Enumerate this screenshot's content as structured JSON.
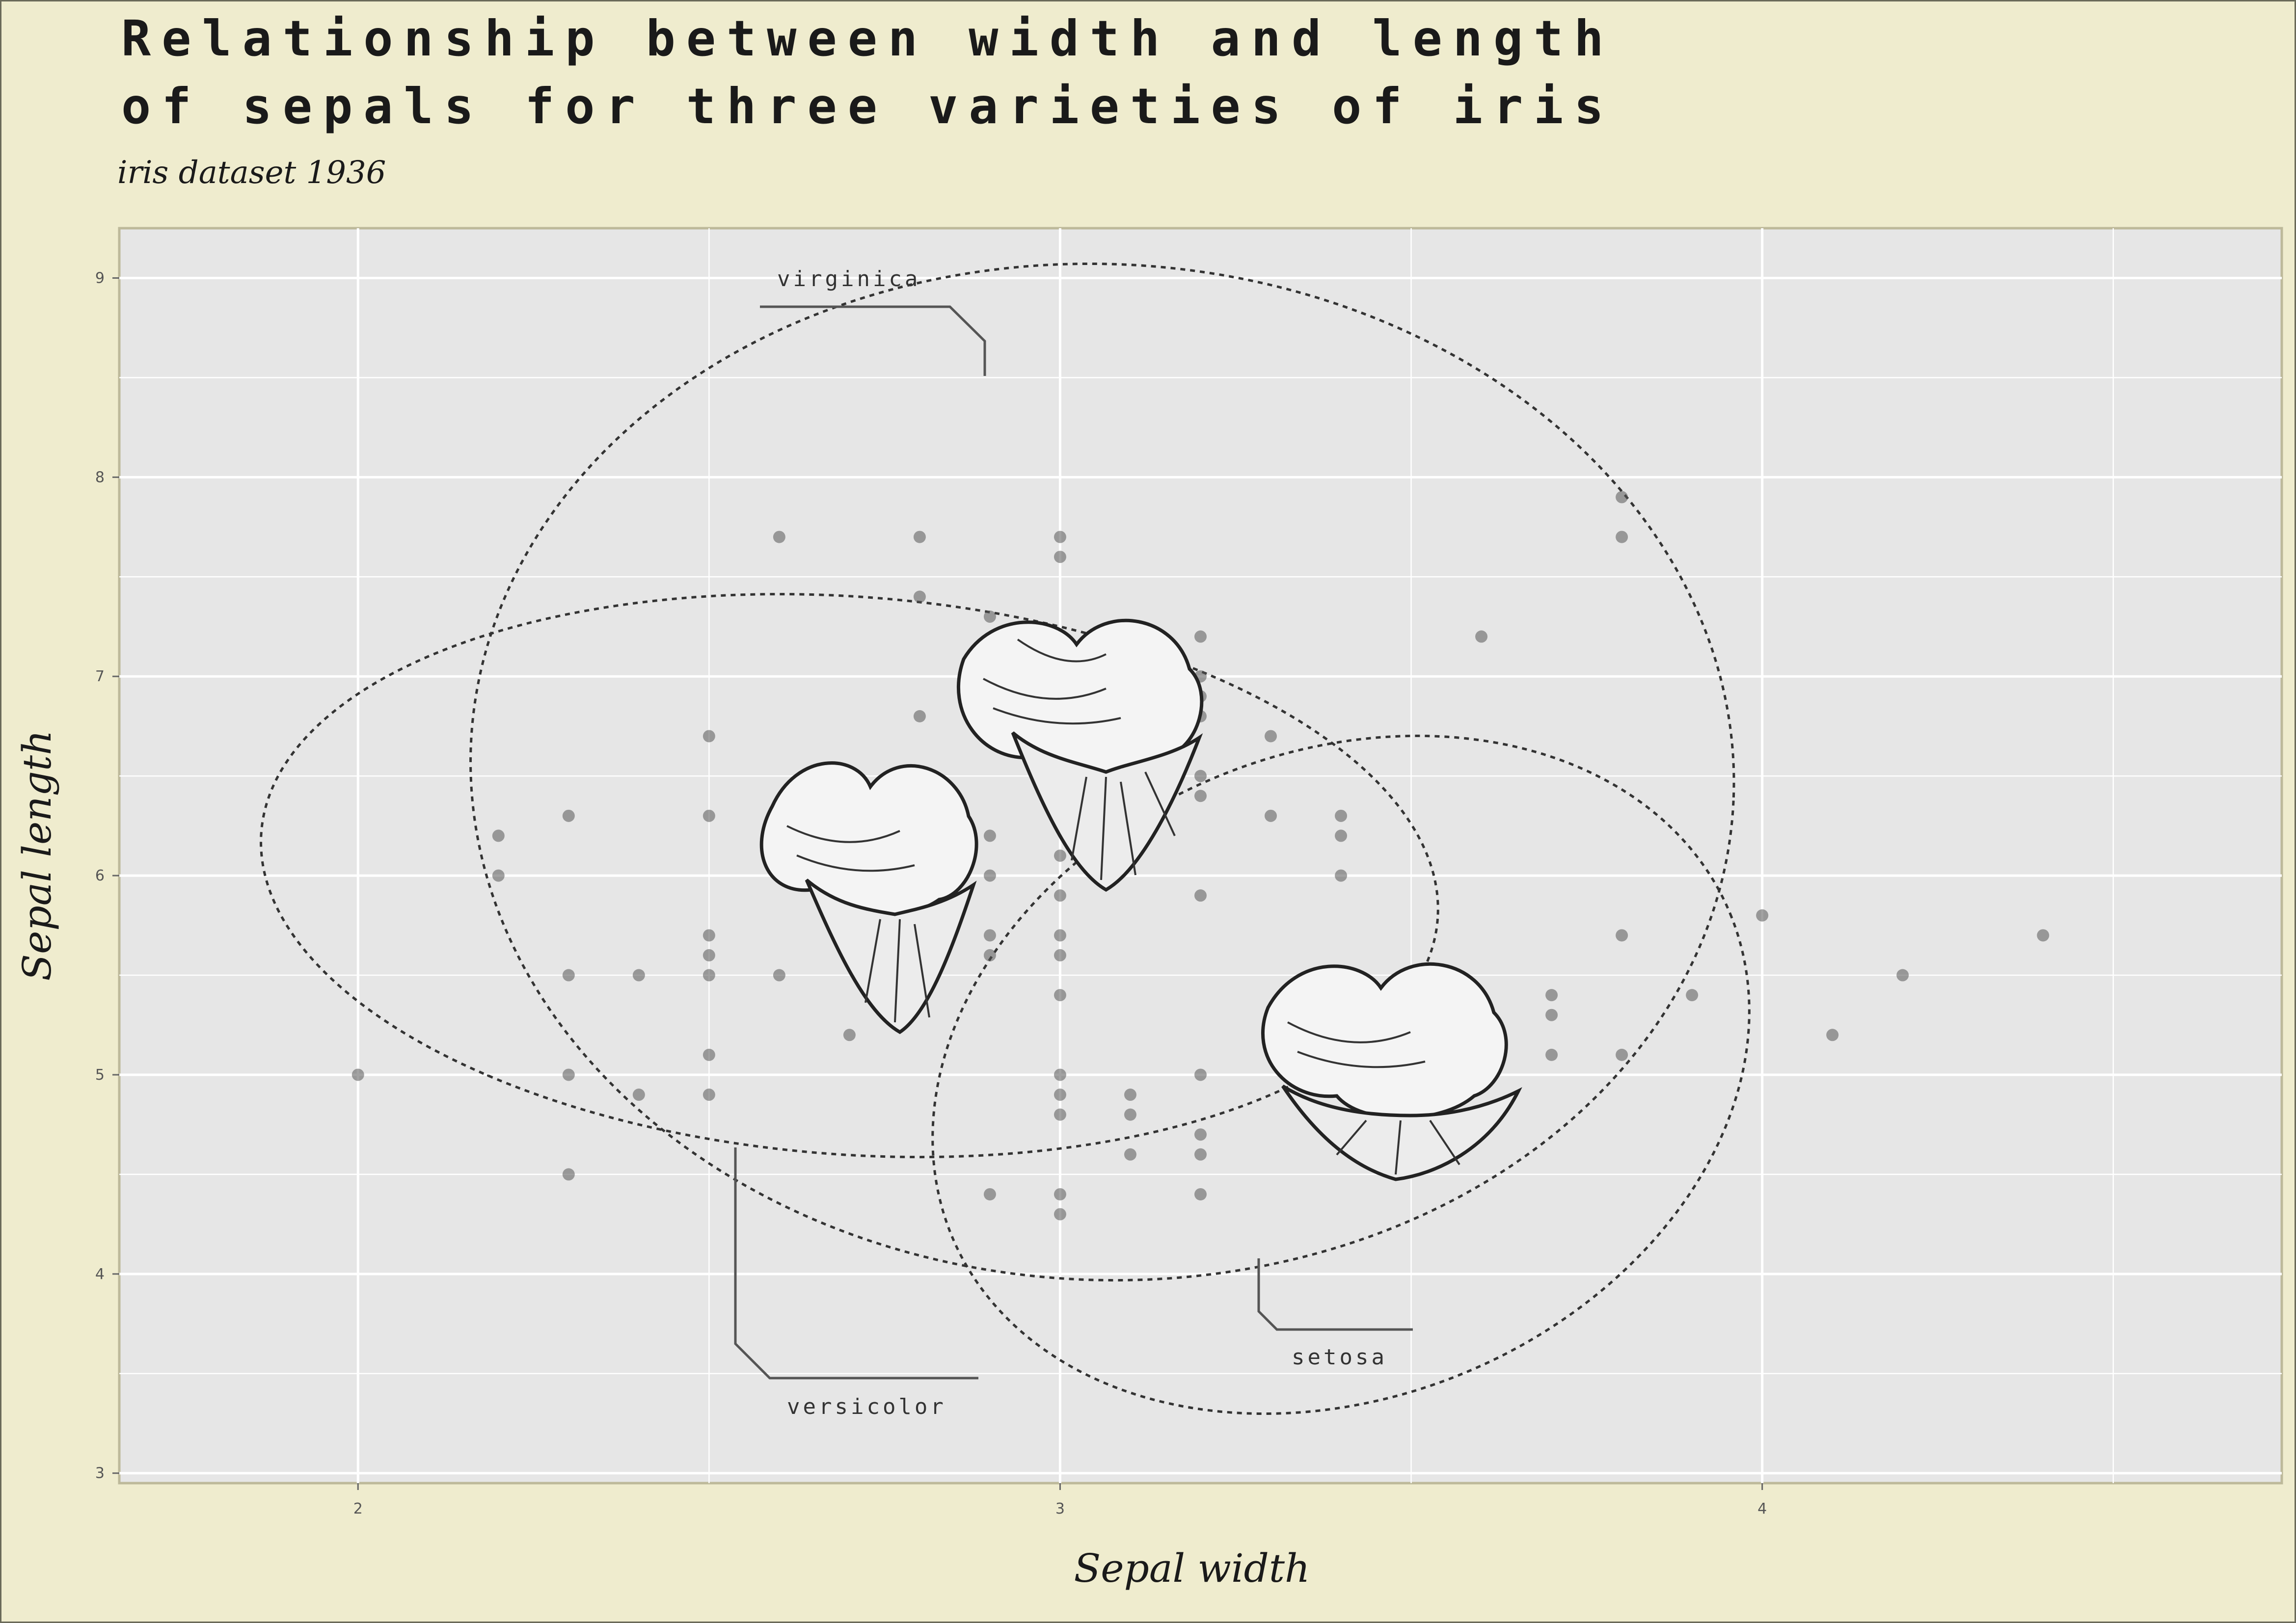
{
  "chart_data": {
    "type": "scatter",
    "title_lines": [
      "Relationship between width and length",
      "of sepals for three varieties of iris"
    ],
    "subtitle": "iris dataset 1936",
    "xlabel": "Sepal width",
    "ylabel": "Sepal length",
    "xlim": [
      1.66,
      4.74
    ],
    "ylim": [
      2.95,
      9.25
    ],
    "x_ticks": [
      2,
      3,
      4
    ],
    "y_ticks": [
      3,
      4,
      5,
      6,
      7,
      8,
      9
    ],
    "grid": true,
    "annotations": [
      {
        "label": "virginica"
      },
      {
        "label": "versicolor"
      },
      {
        "label": "setosa"
      }
    ],
    "point_color": "#555555",
    "background": "#e6e6e6",
    "page_background": "#efecce",
    "points": [
      [
        2.0,
        5.0
      ],
      [
        2.2,
        6.2
      ],
      [
        2.2,
        6.0
      ],
      [
        2.3,
        6.3
      ],
      [
        2.3,
        5.5
      ],
      [
        2.3,
        5.0
      ],
      [
        2.3,
        4.5
      ],
      [
        2.4,
        5.5
      ],
      [
        2.4,
        4.9
      ],
      [
        2.5,
        6.7
      ],
      [
        2.5,
        6.3
      ],
      [
        2.5,
        5.7
      ],
      [
        2.5,
        5.6
      ],
      [
        2.5,
        5.5
      ],
      [
        2.5,
        5.1
      ],
      [
        2.5,
        4.9
      ],
      [
        2.6,
        7.7
      ],
      [
        2.6,
        6.1
      ],
      [
        2.6,
        5.5
      ],
      [
        2.7,
        5.2
      ],
      [
        2.8,
        7.7
      ],
      [
        2.8,
        7.4
      ],
      [
        2.8,
        6.8
      ],
      [
        2.8,
        6.1
      ],
      [
        2.8,
        5.7
      ],
      [
        2.9,
        7.3
      ],
      [
        2.9,
        6.2
      ],
      [
        2.9,
        6.0
      ],
      [
        2.9,
        5.7
      ],
      [
        2.9,
        5.6
      ],
      [
        2.9,
        4.4
      ],
      [
        3.0,
        7.7
      ],
      [
        3.0,
        7.6
      ],
      [
        3.0,
        6.1
      ],
      [
        3.0,
        5.9
      ],
      [
        3.0,
        5.7
      ],
      [
        3.0,
        5.6
      ],
      [
        3.0,
        5.4
      ],
      [
        3.0,
        5.0
      ],
      [
        3.0,
        4.9
      ],
      [
        3.0,
        4.8
      ],
      [
        3.0,
        4.4
      ],
      [
        3.0,
        4.3
      ],
      [
        3.1,
        4.9
      ],
      [
        3.1,
        4.8
      ],
      [
        3.1,
        4.6
      ],
      [
        3.2,
        7.2
      ],
      [
        3.2,
        7.0
      ],
      [
        3.2,
        6.9
      ],
      [
        3.2,
        6.8
      ],
      [
        3.2,
        6.5
      ],
      [
        3.2,
        6.4
      ],
      [
        3.2,
        5.9
      ],
      [
        3.2,
        5.0
      ],
      [
        3.2,
        4.7
      ],
      [
        3.2,
        4.6
      ],
      [
        3.2,
        4.4
      ],
      [
        3.3,
        6.7
      ],
      [
        3.3,
        6.3
      ],
      [
        3.4,
        6.3
      ],
      [
        3.4,
        6.2
      ],
      [
        3.4,
        6.0
      ],
      [
        3.5,
        5.0
      ],
      [
        3.6,
        7.2
      ],
      [
        3.6,
        5.0
      ],
      [
        3.7,
        5.4
      ],
      [
        3.7,
        5.3
      ],
      [
        3.7,
        5.1
      ],
      [
        3.8,
        7.9
      ],
      [
        3.8,
        7.7
      ],
      [
        3.8,
        5.7
      ],
      [
        3.8,
        5.1
      ],
      [
        3.9,
        5.4
      ],
      [
        4.0,
        5.8
      ],
      [
        4.1,
        5.2
      ],
      [
        4.2,
        5.5
      ],
      [
        4.4,
        5.7
      ]
    ],
    "ellipses": [
      {
        "species": "virginica",
        "cx": 3.06,
        "cy": 6.52,
        "rx": 0.9,
        "ry": 2.55,
        "angle_deg": 2.6
      },
      {
        "species": "versicolor",
        "cx": 2.7,
        "cy": 6.0,
        "rx": 0.84,
        "ry": 1.4,
        "angle_deg": 4.2
      },
      {
        "species": "setosa",
        "cx": 3.4,
        "cy": 5.0,
        "rx": 0.6,
        "ry": 1.62,
        "angle_deg": -22.5
      }
    ]
  }
}
